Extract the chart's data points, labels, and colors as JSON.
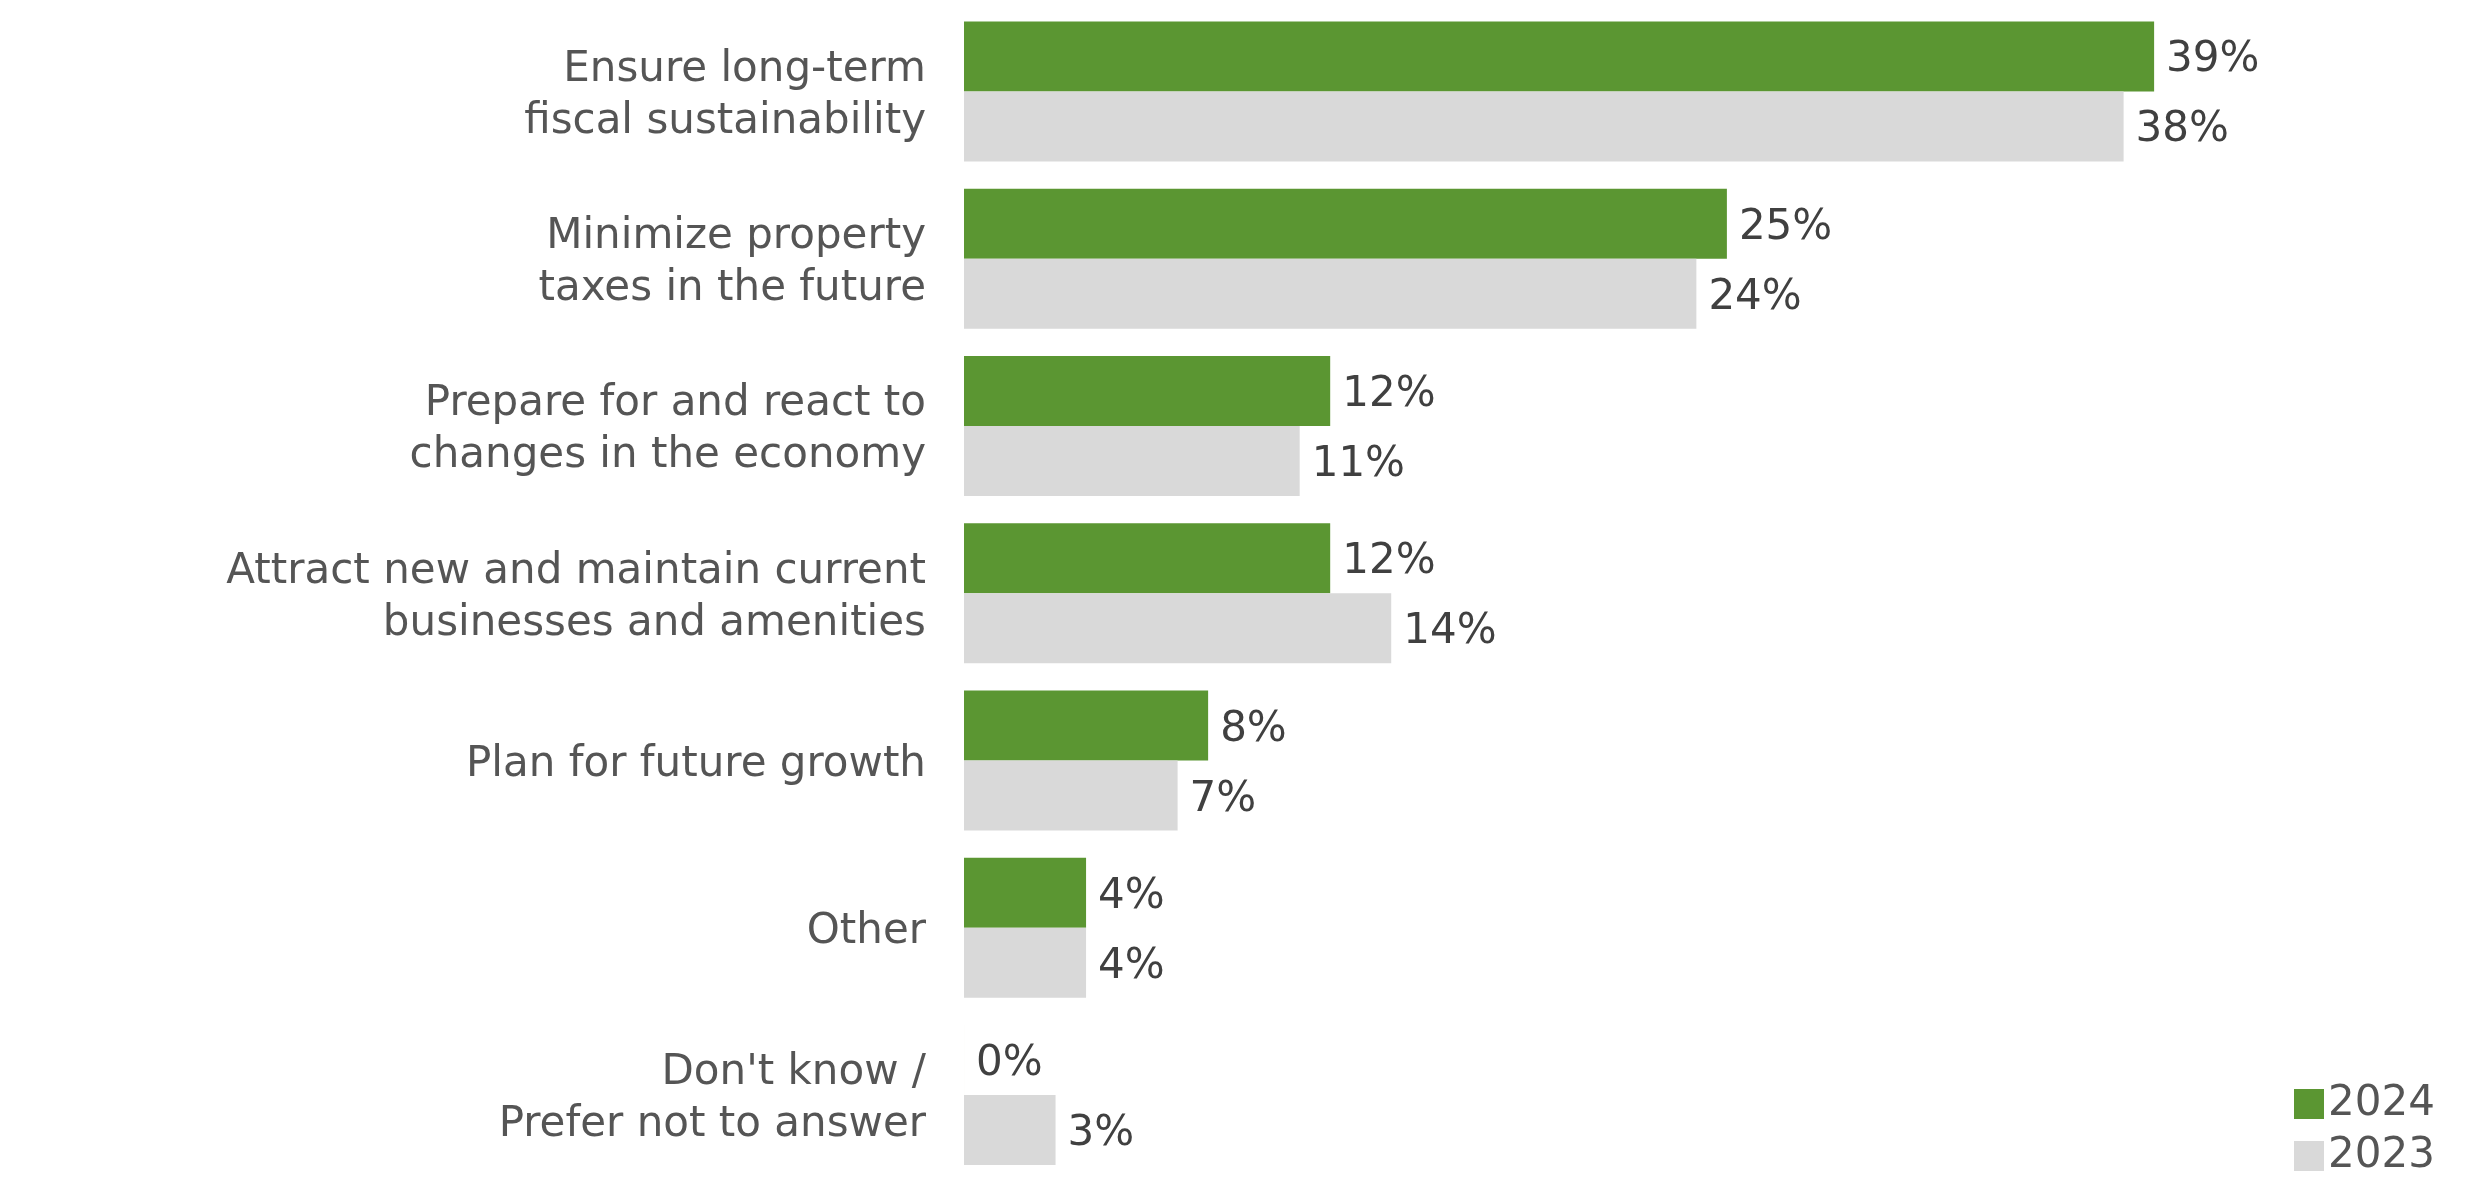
{
  "chart_data": {
    "type": "bar",
    "orientation": "horizontal",
    "categories": [
      "Ensure long-term\nfiscal sustainability",
      "Minimize property\ntaxes in the future",
      "Prepare for and react to\nchanges in the economy",
      "Attract new and maintain current\nbusinesses and amenities",
      "Plan for future growth",
      "Other",
      "Don't know /\nPrefer not to answer"
    ],
    "series": [
      {
        "name": "2024",
        "color": "#5b9632",
        "values": [
          39,
          25,
          12,
          12,
          8,
          4,
          0
        ],
        "value_labels": [
          "39%",
          "25%",
          "12%",
          "12%",
          "8%",
          "4%",
          "0%"
        ]
      },
      {
        "name": "2023",
        "color": "#d9d9d9",
        "values": [
          38,
          24,
          11,
          14,
          7,
          4,
          3
        ],
        "value_labels": [
          "38%",
          "24%",
          "11%",
          "14%",
          "7%",
          "4%",
          "3%"
        ]
      }
    ],
    "legend": "bottom right"
  }
}
